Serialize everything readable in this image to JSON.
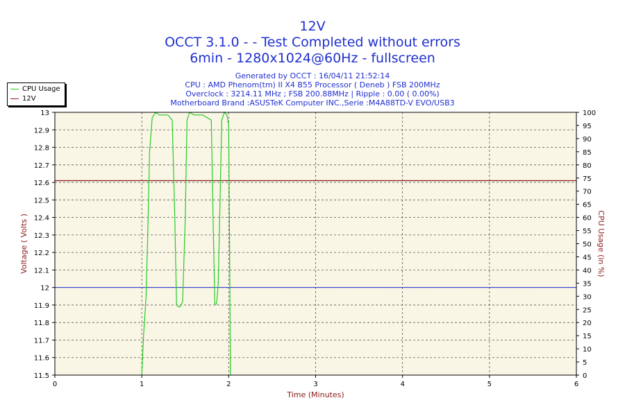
{
  "header": {
    "title_line1": "12V",
    "title_line2": "OCCT 3.1.0 -  - Test Completed without errors",
    "title_line3": "6min - 1280x1024@60Hz - fullscreen",
    "info_line1": "Generated by OCCT : 16/04/11 21:52:14",
    "info_line2": "CPU : AMD Phenom(tm) II X4 B55 Processor ( Deneb ) FSB 200MHz",
    "info_line3": "Overclock : 3214.11 MHz ; FSB 200.88MHz | Ripple : 0.00 ( 0.00%)",
    "info_line4": "Motherboard Brand :ASUSTeK Computer INC.,Serie :M4A88TD-V EVO/USB3"
  },
  "legend": {
    "items": [
      {
        "label": "CPU Usage",
        "color": "#22cc22"
      },
      {
        "label": "12V",
        "color": "#8b1a1a"
      }
    ]
  },
  "chart_data": {
    "type": "line",
    "xlabel": "Time (Minutes)",
    "ylabel_left": "Voltage ( Volts )",
    "ylabel_right": "CPU Usage (in %)",
    "xlim": [
      0,
      6
    ],
    "ylim_left": [
      11.5,
      13
    ],
    "ylim_right": [
      0,
      100
    ],
    "x_ticks": [
      "0",
      "1",
      "2",
      "3",
      "4",
      "5",
      "6"
    ],
    "y_left_ticks": [
      "11.5",
      "11.6",
      "11.7",
      "11.8",
      "11.9",
      "12",
      "12.1",
      "12.2",
      "12.3",
      "12.4",
      "12.5",
      "12.6",
      "12.7",
      "12.8",
      "12.9",
      "13"
    ],
    "y_right_ticks": [
      "0",
      "5",
      "10",
      "15",
      "20",
      "25",
      "30",
      "35",
      "40",
      "45",
      "50",
      "55",
      "60",
      "65",
      "70",
      "75",
      "80",
      "85",
      "90",
      "95",
      "100"
    ],
    "grid": true,
    "legend_position": "top-left",
    "background_color": "#faf6e6",
    "reference_line": {
      "axis": "left",
      "value": 12,
      "color": "#1f2fd0"
    },
    "series": [
      {
        "name": "12V",
        "axis": "left",
        "color": "#8b1a1a",
        "x": [
          0,
          6
        ],
        "y": [
          12.61,
          12.61
        ]
      },
      {
        "name": "CPU Usage",
        "axis": "right",
        "color": "#22cc22",
        "x": [
          1.0,
          1.02,
          1.05,
          1.07,
          1.09,
          1.12,
          1.16,
          1.2,
          1.3,
          1.35,
          1.38,
          1.4,
          1.42,
          1.44,
          1.47,
          1.5,
          1.52,
          1.55,
          1.6,
          1.7,
          1.8,
          1.82,
          1.84,
          1.86,
          1.88,
          1.92,
          1.95,
          1.98,
          2.0,
          2.01,
          2.02
        ],
        "y": [
          0,
          15,
          30,
          55,
          85,
          98,
          100,
          99,
          99,
          97,
          60,
          27,
          26,
          26,
          28,
          60,
          97,
          100,
          99,
          99,
          97,
          60,
          27,
          27,
          35,
          97,
          100,
          99,
          95,
          50,
          0
        ]
      }
    ]
  }
}
